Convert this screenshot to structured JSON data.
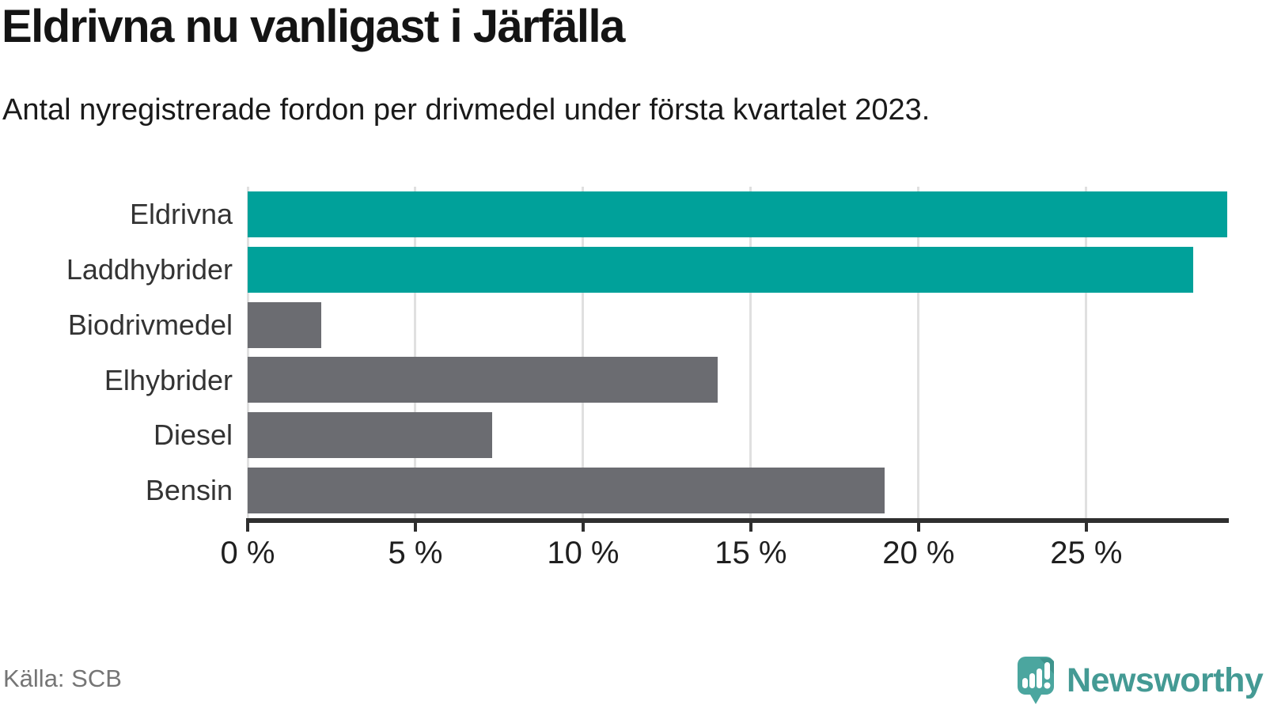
{
  "title": "Eldrivna nu vanligast i Järfälla",
  "subtitle": "Antal nyregistrerade fordon per drivmedel under första kvartalet 2023.",
  "source": "Källa: SCB",
  "brand": {
    "name": "Newsworthy",
    "color": "#449a94",
    "icon": "newsworthy-speech-bubble-chart-icon"
  },
  "colors": {
    "highlight": "#00a19a",
    "default": "#6b6c71",
    "gridline": "#e0e0e0",
    "axis": "#2f2f2f"
  },
  "chart_data": {
    "type": "bar",
    "orientation": "horizontal",
    "title": "Eldrivna nu vanligast i Järfälla",
    "subtitle": "Antal nyregistrerade fordon per drivmedel under första kvartalet 2023.",
    "categories": [
      "Eldrivna",
      "Laddhybrider",
      "Biodrivmedel",
      "Elhybrider",
      "Diesel",
      "Bensin"
    ],
    "values": [
      29.2,
      28.2,
      2.2,
      14.0,
      7.3,
      19.0
    ],
    "unit": "%",
    "bar_colors": [
      "#00a19a",
      "#00a19a",
      "#6b6c71",
      "#6b6c71",
      "#6b6c71",
      "#6b6c71"
    ],
    "x_ticks": [
      0,
      5,
      10,
      15,
      20,
      25
    ],
    "x_tick_labels": [
      "0 %",
      "5 %",
      "10 %",
      "15 %",
      "20 %",
      "25 %"
    ],
    "xlim": [
      0,
      29.25
    ],
    "grid": true,
    "legend": false
  }
}
